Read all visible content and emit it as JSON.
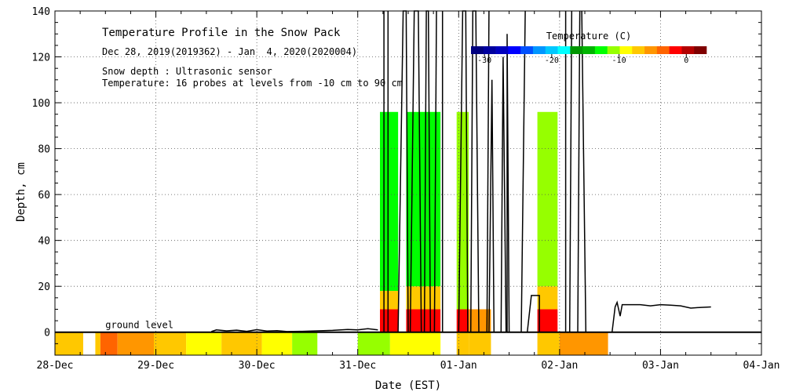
{
  "chart_data": {
    "type": "heatmap",
    "title": "Temperature Profile in the Snow Pack",
    "subtitle": "Dec 28, 2019(2019362) - Jan  4, 2020(2020004)",
    "notes": [
      "Snow depth : Ultrasonic sensor",
      "Temperature: 16 probes at levels from -10 cm to 90 cm"
    ],
    "xlabel": "Date (EST)",
    "ylabel": "Depth, cm",
    "xlim": [
      0,
      7
    ],
    "ylim": [
      -10,
      140
    ],
    "x_ticks": [
      {
        "x": 0,
        "label": "28-Dec"
      },
      {
        "x": 1,
        "label": "29-Dec"
      },
      {
        "x": 2,
        "label": "30-Dec"
      },
      {
        "x": 3,
        "label": "31-Dec"
      },
      {
        "x": 4,
        "label": "01-Jan"
      },
      {
        "x": 5,
        "label": "02-Jan"
      },
      {
        "x": 6,
        "label": "03-Jan"
      },
      {
        "x": 7,
        "label": "04-Jan"
      }
    ],
    "y_ticks": [
      {
        "y": 0,
        "label": "0"
      },
      {
        "y": 20,
        "label": "20"
      },
      {
        "y": 40,
        "label": "40"
      },
      {
        "y": 60,
        "label": "60"
      },
      {
        "y": 80,
        "label": "80"
      },
      {
        "y": 100,
        "label": "100"
      },
      {
        "y": 120,
        "label": "120"
      },
      {
        "y": 140,
        "label": "140"
      }
    ],
    "grid": true,
    "ground_level": {
      "y": 0,
      "label": "ground level"
    },
    "colorbar": {
      "title": "Temperature (C)",
      "colors": [
        "#00007f",
        "#00009f",
        "#0000bf",
        "#0000ff",
        "#0050ff",
        "#0096ff",
        "#00c8ff",
        "#00ffff",
        "#009600",
        "#00b400",
        "#00ff00",
        "#96ff00",
        "#ffff00",
        "#ffc800",
        "#ff9600",
        "#ff6400",
        "#ff0000",
        "#b40000",
        "#7f0000"
      ],
      "range": [
        -32,
        3
      ],
      "ticks": [
        {
          "v": -30,
          "label": "-30"
        },
        {
          "v": -20,
          "label": "-20"
        },
        {
          "v": -10,
          "label": "-10"
        },
        {
          "v": 0,
          "label": "0"
        }
      ],
      "placement": "top-right"
    },
    "temperature_blocks": [
      {
        "x0": 0.0,
        "x1": 0.28,
        "y0": -10,
        "y1": 0,
        "color": "#ffc800"
      },
      {
        "x0": 0.4,
        "x1": 0.45,
        "y0": -10,
        "y1": 0,
        "color": "#ffc800"
      },
      {
        "x0": 0.45,
        "x1": 0.62,
        "y0": -10,
        "y1": 0,
        "color": "#ff6400"
      },
      {
        "x0": 0.62,
        "x1": 0.98,
        "y0": -10,
        "y1": 0,
        "color": "#ff9600"
      },
      {
        "x0": 0.98,
        "x1": 1.3,
        "y0": -10,
        "y1": 0,
        "color": "#ffc800"
      },
      {
        "x0": 1.3,
        "x1": 1.65,
        "y0": -10,
        "y1": 0,
        "color": "#ffff00"
      },
      {
        "x0": 1.65,
        "x1": 2.05,
        "y0": -10,
        "y1": 0,
        "color": "#ffc800"
      },
      {
        "x0": 2.05,
        "x1": 2.35,
        "y0": -10,
        "y1": 0,
        "color": "#ffff00"
      },
      {
        "x0": 2.35,
        "x1": 2.6,
        "y0": -10,
        "y1": 0,
        "color": "#96ff00"
      },
      {
        "x0": 3.0,
        "x1": 3.32,
        "y0": -10,
        "y1": 0,
        "color": "#96ff00"
      },
      {
        "x0": 3.32,
        "x1": 3.82,
        "y0": -10,
        "y1": 0,
        "color": "#ffff00"
      },
      {
        "x0": 3.22,
        "x1": 3.4,
        "y0": 0,
        "y1": 10,
        "color": "#ff0000"
      },
      {
        "x0": 3.22,
        "x1": 3.4,
        "y0": 10,
        "y1": 18,
        "color": "#ffc800"
      },
      {
        "x0": 3.22,
        "x1": 3.4,
        "y0": 18,
        "y1": 96,
        "color": "#00ff00"
      },
      {
        "x0": 3.48,
        "x1": 3.82,
        "y0": 0,
        "y1": 10,
        "color": "#ff0000"
      },
      {
        "x0": 3.48,
        "x1": 3.82,
        "y0": 10,
        "y1": 20,
        "color": "#ffc800"
      },
      {
        "x0": 3.48,
        "x1": 3.82,
        "y0": 20,
        "y1": 96,
        "color": "#00ff00"
      },
      {
        "x0": 3.98,
        "x1": 4.1,
        "y0": -10,
        "y1": 0,
        "color": "#ffc800"
      },
      {
        "x0": 3.98,
        "x1": 4.1,
        "y0": 0,
        "y1": 10,
        "color": "#ff0000"
      },
      {
        "x0": 3.98,
        "x1": 4.1,
        "y0": 10,
        "y1": 96,
        "color": "#96ff00"
      },
      {
        "x0": 4.1,
        "x1": 4.32,
        "y0": -10,
        "y1": 0,
        "color": "#ffc800"
      },
      {
        "x0": 4.1,
        "x1": 4.32,
        "y0": 0,
        "y1": 10,
        "color": "#ff9600"
      },
      {
        "x0": 4.78,
        "x1": 5.0,
        "y0": -10,
        "y1": 0,
        "color": "#ffc800"
      },
      {
        "x0": 5.0,
        "x1": 5.48,
        "y0": -10,
        "y1": 0,
        "color": "#ff9600"
      },
      {
        "x0": 4.78,
        "x1": 4.98,
        "y0": 0,
        "y1": 10,
        "color": "#ff0000"
      },
      {
        "x0": 4.78,
        "x1": 4.98,
        "y0": 10,
        "y1": 20,
        "color": "#ffc800"
      },
      {
        "x0": 4.78,
        "x1": 4.98,
        "y0": 20,
        "y1": 96,
        "color": "#96ff00"
      }
    ],
    "snow_depth_series": [
      {
        "points": [
          [
            1.55,
            0.3
          ],
          [
            1.6,
            1.0
          ],
          [
            1.7,
            0.6
          ],
          [
            1.8,
            0.9
          ],
          [
            1.9,
            0.4
          ],
          [
            2.0,
            1.1
          ],
          [
            2.1,
            0.5
          ],
          [
            2.2,
            0.7
          ],
          [
            2.3,
            0.3
          ],
          [
            2.45,
            0.4
          ],
          [
            2.6,
            0.6
          ],
          [
            2.75,
            0.8
          ],
          [
            2.9,
            1.2
          ],
          [
            3.0,
            1.0
          ],
          [
            3.1,
            1.5
          ],
          [
            3.2,
            1.0
          ]
        ]
      },
      {
        "points": [
          [
            3.26,
            0
          ],
          [
            3.26,
            140
          ]
        ]
      },
      {
        "points": [
          [
            3.3,
            140
          ],
          [
            3.3,
            0
          ]
        ]
      },
      {
        "points": [
          [
            3.4,
            0
          ],
          [
            3.45,
            140
          ],
          [
            3.48,
            140
          ],
          [
            3.5,
            0
          ]
        ]
      },
      {
        "points": [
          [
            3.52,
            0
          ],
          [
            3.56,
            140
          ],
          [
            3.6,
            140
          ],
          [
            3.63,
            0
          ]
        ]
      },
      {
        "points": [
          [
            3.66,
            0
          ],
          [
            3.68,
            140
          ],
          [
            3.7,
            140
          ],
          [
            3.72,
            0
          ]
        ]
      },
      {
        "points": [
          [
            3.76,
            0
          ],
          [
            3.78,
            140
          ]
        ]
      },
      {
        "points": [
          [
            3.84,
            140
          ],
          [
            3.84,
            0
          ]
        ]
      },
      {
        "points": [
          [
            4.0,
            0
          ],
          [
            4.04,
            140
          ],
          [
            4.07,
            140
          ],
          [
            4.09,
            0
          ]
        ]
      },
      {
        "points": [
          [
            4.12,
            0
          ],
          [
            4.14,
            140
          ],
          [
            4.17,
            140
          ],
          [
            4.2,
            0
          ]
        ]
      },
      {
        "points": [
          [
            4.28,
            0
          ],
          [
            4.3,
            140
          ]
        ]
      },
      {
        "points": [
          [
            4.3,
            0
          ],
          [
            4.33,
            110
          ],
          [
            4.35,
            0
          ]
        ]
      },
      {
        "points": [
          [
            4.42,
            0
          ],
          [
            4.44,
            120
          ],
          [
            4.47,
            0
          ]
        ]
      },
      {
        "points": [
          [
            4.48,
            0
          ],
          [
            4.48,
            130
          ],
          [
            4.5,
            0
          ]
        ]
      },
      {
        "points": [
          [
            4.62,
            0
          ],
          [
            4.66,
            140
          ]
        ]
      },
      {
        "points": [
          [
            4.68,
            0
          ],
          [
            4.72,
            16
          ],
          [
            4.8,
            16
          ],
          [
            4.8,
            0
          ]
        ]
      },
      {
        "points": [
          [
            5.06,
            140
          ],
          [
            5.06,
            0
          ]
        ]
      },
      {
        "points": [
          [
            5.1,
            0
          ],
          [
            5.12,
            140
          ]
        ]
      },
      {
        "points": [
          [
            5.18,
            0
          ],
          [
            5.2,
            140
          ]
        ]
      },
      {
        "points": [
          [
            5.22,
            140
          ],
          [
            5.26,
            0
          ]
        ]
      },
      {
        "points": [
          [
            5.52,
            0
          ],
          [
            5.55,
            11
          ],
          [
            5.57,
            13
          ],
          [
            5.6,
            7
          ],
          [
            5.62,
            12
          ],
          [
            5.7,
            12
          ],
          [
            5.8,
            12
          ],
          [
            5.9,
            11.5
          ],
          [
            6.0,
            12
          ],
          [
            6.1,
            11.8
          ],
          [
            6.2,
            11.5
          ],
          [
            6.3,
            10.5
          ],
          [
            6.4,
            10.8
          ],
          [
            6.5,
            11
          ]
        ]
      }
    ]
  }
}
